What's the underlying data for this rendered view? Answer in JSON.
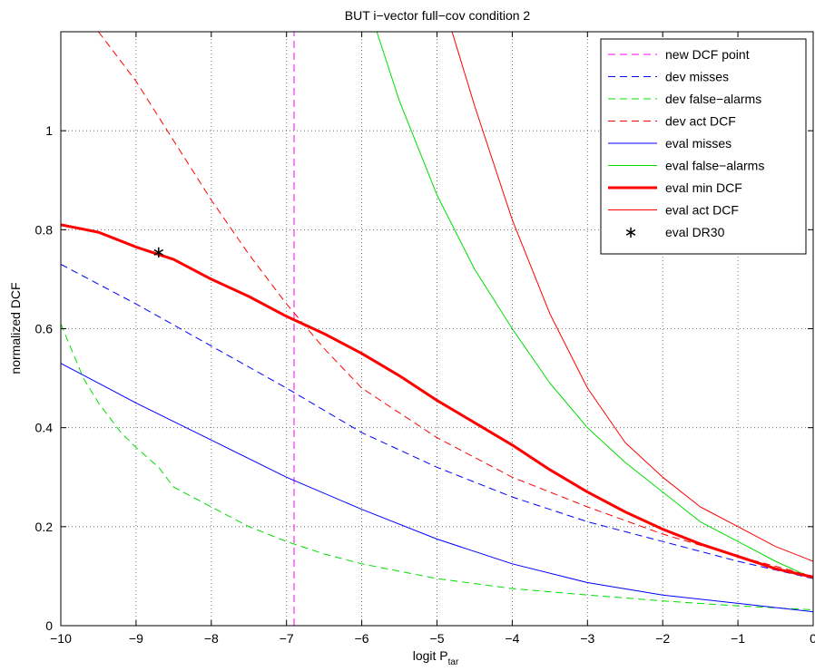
{
  "chart_data": {
    "type": "line",
    "title": "BUT i−vector full−cov condition 2",
    "xlabel": "logit P",
    "xlabel_subscript": "tar",
    "ylabel": "normalized DCF",
    "xlim": [
      -10,
      0
    ],
    "ylim": [
      0,
      1.2
    ],
    "x_ticks": [
      -10,
      -9,
      -8,
      -7,
      -6,
      -5,
      -4,
      -3,
      -2,
      -1,
      0
    ],
    "x_tick_labels": [
      "−10",
      "−9",
      "−8",
      "−7",
      "−6",
      "−5",
      "−4",
      "−3",
      "−2",
      "−1",
      "0"
    ],
    "y_ticks": [
      0,
      0.2,
      0.4,
      0.6,
      0.8,
      1
    ],
    "y_tick_labels": [
      "0",
      "0.2",
      "0.4",
      "0.6",
      "0.8",
      "1"
    ],
    "grid": true,
    "legend_position": "top-right",
    "series": [
      {
        "name": "new DCF point",
        "color": "#ff00ff",
        "style": "dashed",
        "width": 1,
        "x": [
          -6.9,
          -6.9
        ],
        "y": [
          0,
          1.2
        ]
      },
      {
        "name": "dev misses",
        "color": "#0000ff",
        "style": "dashed",
        "width": 1,
        "x": [
          -10,
          -9,
          -8,
          -7,
          -6,
          -5,
          -4,
          -3,
          -2,
          -1,
          0
        ],
        "y": [
          0.73,
          0.65,
          0.565,
          0.48,
          0.39,
          0.32,
          0.26,
          0.21,
          0.17,
          0.13,
          0.095
        ]
      },
      {
        "name": "dev false−alarms",
        "color": "#00dd00",
        "style": "dashed",
        "width": 1,
        "x": [
          -10,
          -9.7,
          -9.5,
          -9.2,
          -9,
          -8.7,
          -8.5,
          -8,
          -7.5,
          -7,
          -6.5,
          -6,
          -5,
          -4,
          -3,
          -2,
          -1,
          0
        ],
        "y": [
          0.61,
          0.5,
          0.45,
          0.39,
          0.36,
          0.32,
          0.28,
          0.24,
          0.2,
          0.17,
          0.145,
          0.125,
          0.095,
          0.075,
          0.062,
          0.05,
          0.04,
          0.032
        ]
      },
      {
        "name": "dev act DCF",
        "color": "#ff0000",
        "style": "dashed",
        "width": 1,
        "x": [
          -9.5,
          -9,
          -8.5,
          -8,
          -7.5,
          -7,
          -6.5,
          -6,
          -5,
          -4,
          -3,
          -2,
          -1,
          0
        ],
        "y": [
          1.2,
          1.1,
          0.98,
          0.86,
          0.75,
          0.65,
          0.56,
          0.48,
          0.38,
          0.3,
          0.24,
          0.185,
          0.14,
          0.1
        ]
      },
      {
        "name": "eval misses",
        "color": "#0000ff",
        "style": "solid",
        "width": 1,
        "x": [
          -10,
          -9,
          -8,
          -7,
          -6,
          -5,
          -4,
          -3,
          -2,
          -1,
          0
        ],
        "y": [
          0.53,
          0.45,
          0.375,
          0.3,
          0.235,
          0.175,
          0.125,
          0.087,
          0.062,
          0.045,
          0.028
        ]
      },
      {
        "name": "eval false−alarms",
        "color": "#00dd00",
        "style": "solid",
        "width": 1,
        "x": [
          -5.8,
          -5.5,
          -5,
          -4.5,
          -4,
          -3.5,
          -3,
          -2.5,
          -2,
          -1.5,
          -1,
          -0.5,
          0
        ],
        "y": [
          1.2,
          1.06,
          0.87,
          0.72,
          0.6,
          0.49,
          0.4,
          0.33,
          0.27,
          0.21,
          0.17,
          0.13,
          0.095
        ]
      },
      {
        "name": "eval min DCF",
        "color": "#ff0000",
        "style": "solid",
        "width": 3,
        "x": [
          -10,
          -9.5,
          -9,
          -8.5,
          -8,
          -7.5,
          -7,
          -6.5,
          -6,
          -5.5,
          -5,
          -4.5,
          -4,
          -3.5,
          -3,
          -2.5,
          -2,
          -1.5,
          -1,
          -0.5,
          0
        ],
        "y": [
          0.81,
          0.795,
          0.765,
          0.74,
          0.7,
          0.665,
          0.625,
          0.59,
          0.55,
          0.505,
          0.455,
          0.41,
          0.365,
          0.315,
          0.27,
          0.23,
          0.195,
          0.165,
          0.14,
          0.115,
          0.098
        ]
      },
      {
        "name": "eval act DCF",
        "color": "#ff0000",
        "style": "solid",
        "width": 1,
        "x": [
          -4.8,
          -4.5,
          -4,
          -3.5,
          -3,
          -2.5,
          -2,
          -1.5,
          -1,
          -0.5,
          0
        ],
        "y": [
          1.2,
          1.05,
          0.82,
          0.63,
          0.48,
          0.37,
          0.3,
          0.24,
          0.2,
          0.16,
          0.13
        ]
      },
      {
        "name": "eval DR30",
        "color": "#000000",
        "style": "marker",
        "marker": "*",
        "x": [
          -8.7
        ],
        "y": [
          0.755
        ]
      }
    ]
  }
}
